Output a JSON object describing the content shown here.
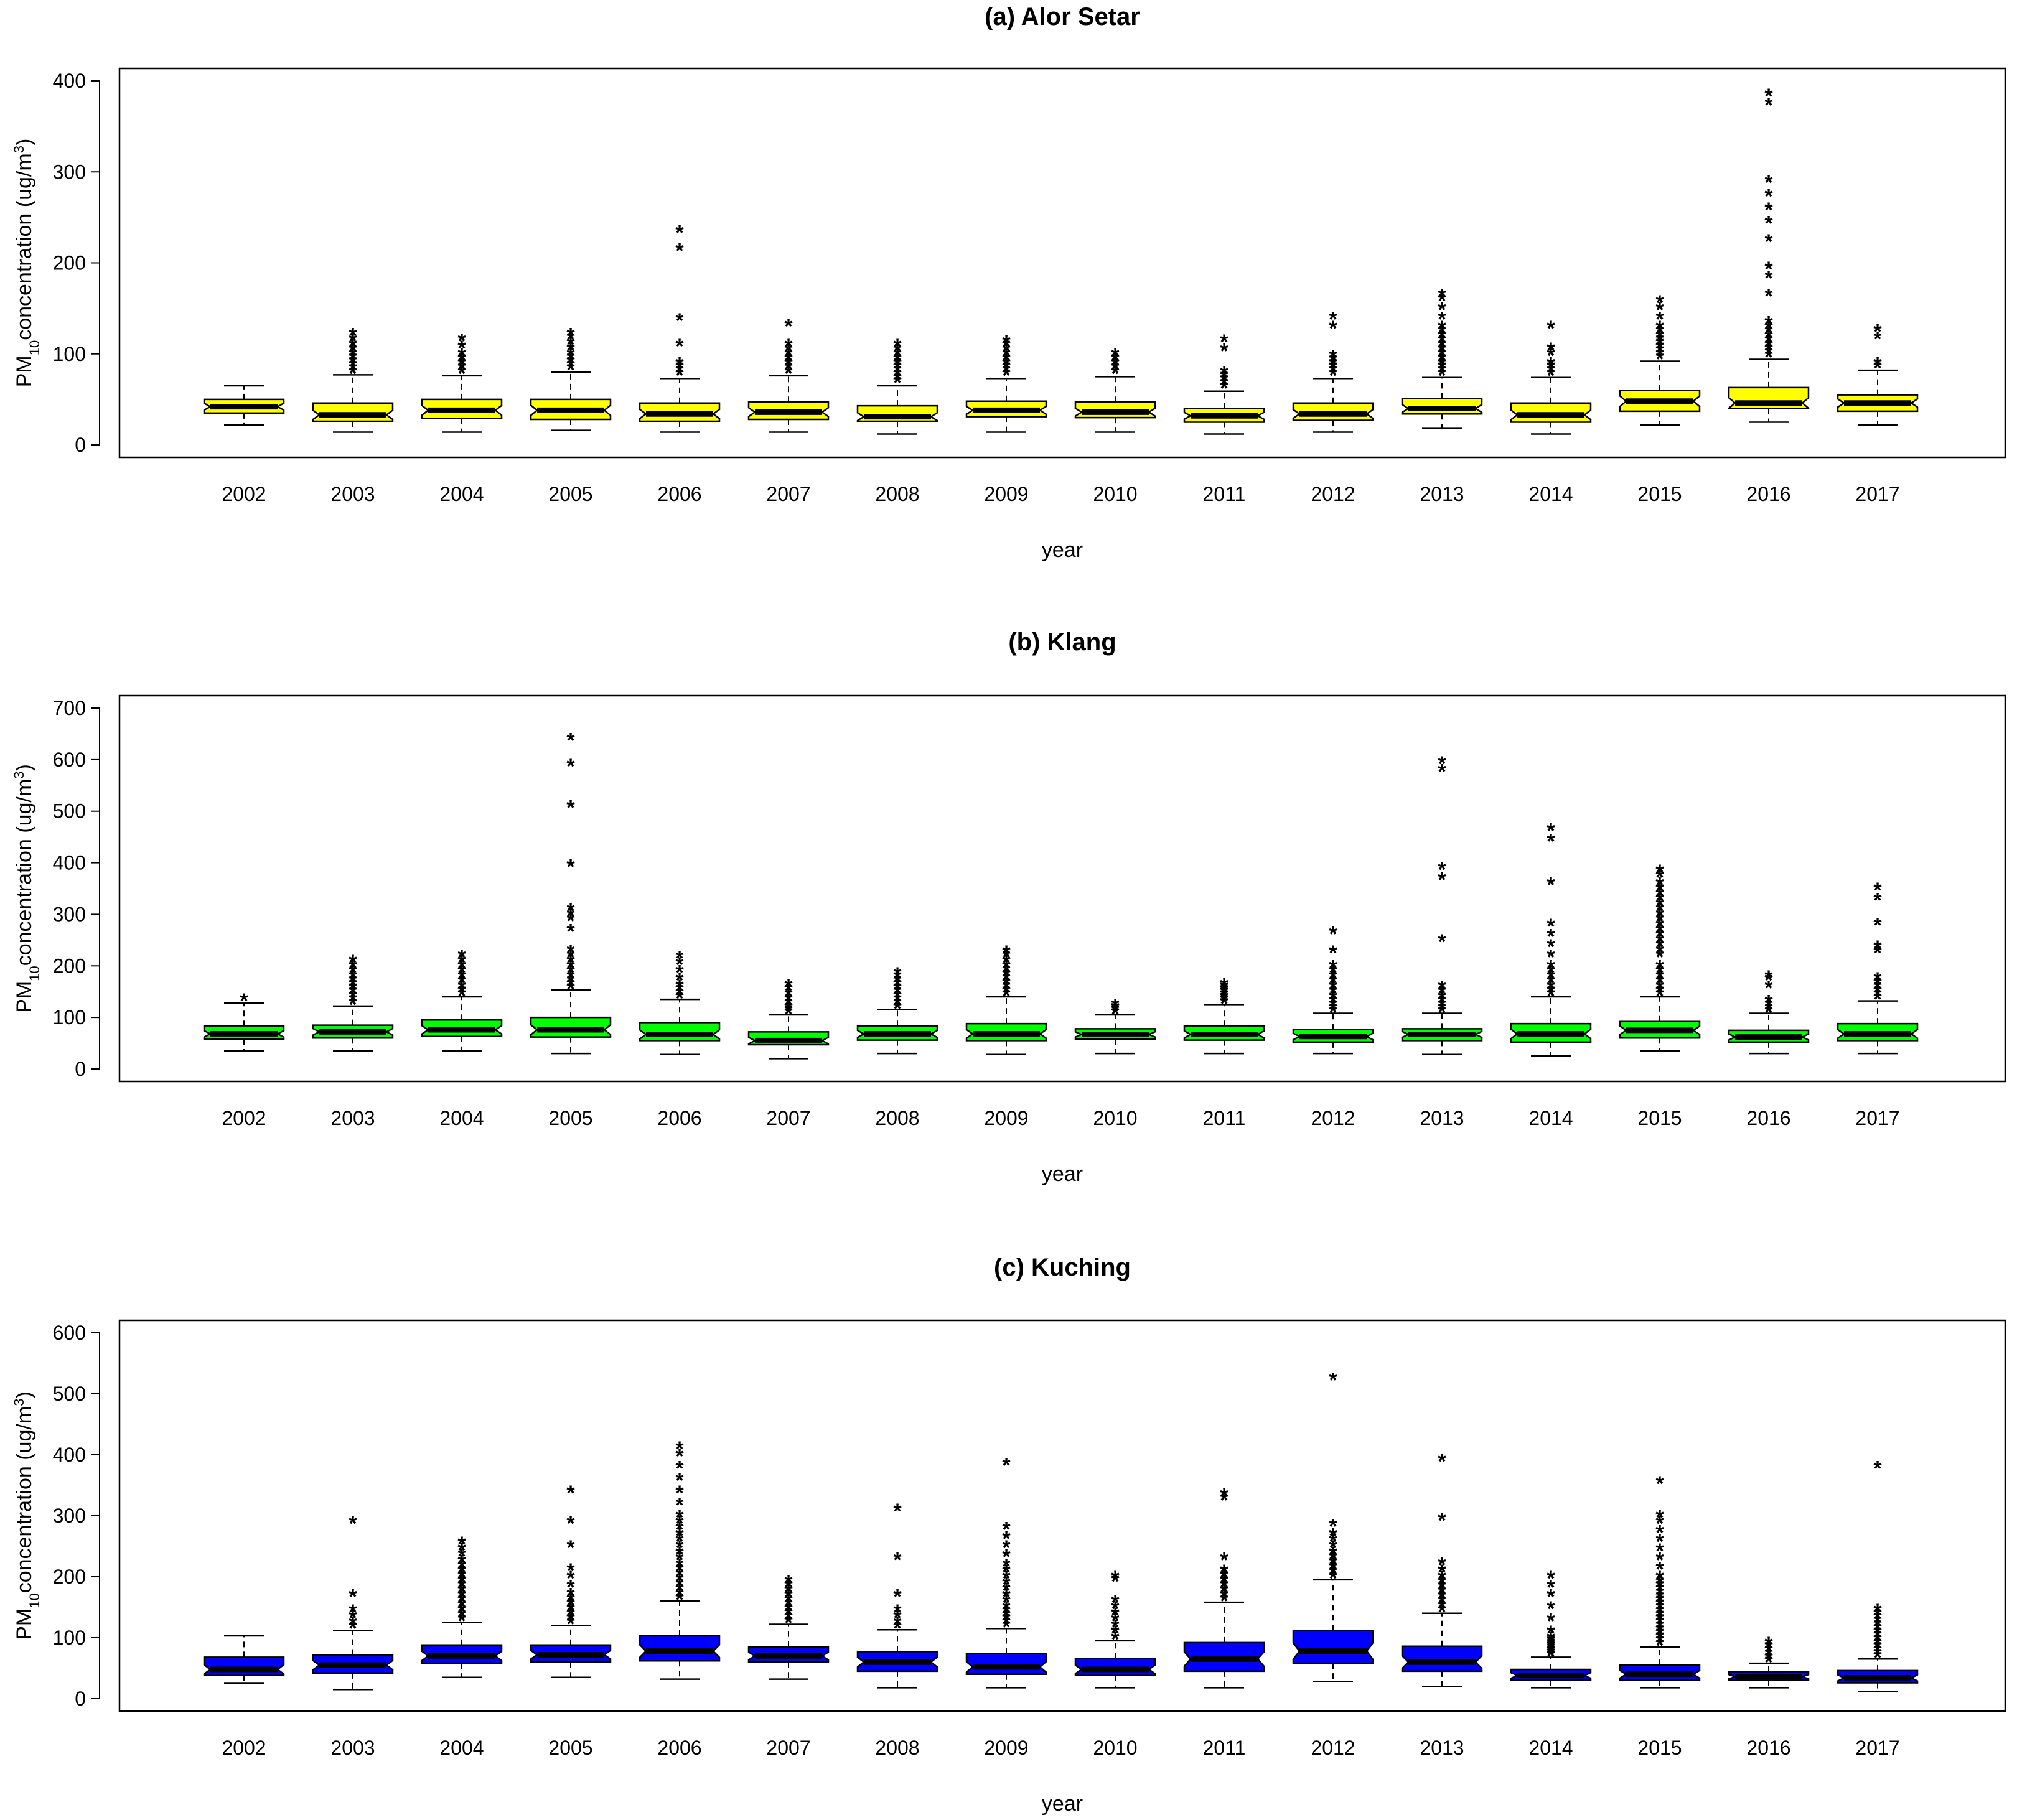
{
  "chart_data": [
    {
      "type": "boxplot",
      "title": "(a) Alor Setar",
      "ylabel": {
        "main": "PM",
        "sub": "10",
        "rest": "concentration (ug/m",
        "sup": "3",
        "close": ")"
      },
      "xlabel": "year",
      "ylim": [
        0,
        400
      ],
      "yticks": [
        0,
        100,
        200,
        300,
        400
      ],
      "fill": "#ffff00",
      "median_color": "#000000",
      "categories": [
        "2002",
        "2003",
        "2004",
        "2005",
        "2006",
        "2007",
        "2008",
        "2009",
        "2010",
        "2011",
        "2012",
        "2013",
        "2014",
        "2015",
        "2016",
        "2017"
      ],
      "boxes": [
        {
          "min": 22,
          "q1": 35,
          "median": 42,
          "q3": 50,
          "max": 65,
          "outliers": []
        },
        {
          "min": 14,
          "q1": 26,
          "median": 33,
          "q3": 46,
          "max": 77,
          "outliers": [
            80,
            84,
            88,
            92,
            96,
            100,
            105,
            110,
            116,
            122
          ]
        },
        {
          "min": 14,
          "q1": 29,
          "median": 38,
          "q3": 50,
          "max": 76,
          "outliers": [
            80,
            85,
            90,
            95,
            100,
            108,
            116
          ]
        },
        {
          "min": 16,
          "q1": 28,
          "median": 38,
          "q3": 50,
          "max": 80,
          "outliers": [
            84,
            88,
            92,
            96,
            100,
            106,
            112,
            118,
            122
          ]
        },
        {
          "min": 14,
          "q1": 26,
          "median": 34,
          "q3": 46,
          "max": 73,
          "outliers": [
            78,
            82,
            86,
            90,
            110,
            138,
            215,
            235
          ]
        },
        {
          "min": 14,
          "q1": 28,
          "median": 36,
          "q3": 47,
          "max": 76,
          "outliers": [
            80,
            85,
            90,
            95,
            100,
            105,
            110,
            132
          ]
        },
        {
          "min": 12,
          "q1": 26,
          "median": 31,
          "q3": 43,
          "max": 65,
          "outliers": [
            70,
            74,
            78,
            82,
            86,
            90,
            95,
            100,
            105,
            110
          ]
        },
        {
          "min": 14,
          "q1": 31,
          "median": 38,
          "q3": 48,
          "max": 73,
          "outliers": [
            78,
            82,
            86,
            90,
            95,
            100,
            105,
            110,
            114
          ]
        },
        {
          "min": 14,
          "q1": 30,
          "median": 36,
          "q3": 47,
          "max": 75,
          "outliers": [
            80,
            85,
            90,
            95,
            100
          ]
        },
        {
          "min": 12,
          "q1": 25,
          "median": 32,
          "q3": 40,
          "max": 59,
          "outliers": [
            64,
            68,
            72,
            76,
            80,
            105,
            115
          ]
        },
        {
          "min": 14,
          "q1": 27,
          "median": 34,
          "q3": 46,
          "max": 73,
          "outliers": [
            78,
            82,
            86,
            90,
            94,
            98,
            130,
            140
          ]
        },
        {
          "min": 18,
          "q1": 34,
          "median": 40,
          "q3": 51,
          "max": 74,
          "outliers": [
            78,
            82,
            86,
            90,
            95,
            100,
            105,
            110,
            115,
            120,
            125,
            130,
            140,
            150,
            160,
            165
          ]
        },
        {
          "min": 12,
          "q1": 25,
          "median": 33,
          "q3": 46,
          "max": 74,
          "outliers": [
            78,
            82,
            86,
            90,
            100,
            106,
            130
          ]
        },
        {
          "min": 22,
          "q1": 37,
          "median": 48,
          "q3": 60,
          "max": 92,
          "outliers": [
            96,
            100,
            104,
            108,
            112,
            116,
            120,
            125,
            130,
            140,
            150,
            158
          ]
        },
        {
          "min": 25,
          "q1": 40,
          "median": 46,
          "q3": 63,
          "max": 94,
          "outliers": [
            98,
            102,
            106,
            110,
            115,
            120,
            125,
            130,
            135,
            165,
            185,
            195,
            225,
            245,
            260,
            275,
            290,
            375,
            385
          ]
        },
        {
          "min": 22,
          "q1": 37,
          "median": 46,
          "q3": 55,
          "max": 82,
          "outliers": [
            86,
            90,
            118,
            126
          ]
        }
      ]
    },
    {
      "type": "boxplot",
      "title": "(b) Klang",
      "ylabel": {
        "main": "PM",
        "sub": "10",
        "rest": "concentration (ug/m",
        "sup": "3",
        "close": ")"
      },
      "xlabel": "year",
      "ylim": [
        0,
        700
      ],
      "yticks": [
        0,
        100,
        200,
        300,
        400,
        500,
        600,
        700
      ],
      "fill": "#00ff00",
      "median_color": "#000000",
      "categories": [
        "2002",
        "2003",
        "2004",
        "2005",
        "2006",
        "2007",
        "2008",
        "2009",
        "2010",
        "2011",
        "2012",
        "2013",
        "2014",
        "2015",
        "2016",
        "2017"
      ],
      "boxes": [
        {
          "min": 35,
          "q1": 58,
          "median": 68,
          "q3": 83,
          "max": 128,
          "outliers": [
            135
          ]
        },
        {
          "min": 35,
          "q1": 60,
          "median": 72,
          "q3": 85,
          "max": 122,
          "outliers": [
            128,
            135,
            142,
            150,
            158,
            165,
            172,
            180,
            190,
            200,
            210
          ]
        },
        {
          "min": 35,
          "q1": 63,
          "median": 76,
          "q3": 95,
          "max": 140,
          "outliers": [
            145,
            152,
            160,
            170,
            180,
            190,
            200,
            210,
            220
          ]
        },
        {
          "min": 30,
          "q1": 62,
          "median": 76,
          "q3": 100,
          "max": 153,
          "outliers": [
            158,
            165,
            172,
            180,
            190,
            200,
            210,
            220,
            230,
            270,
            290,
            300,
            310,
            395,
            510,
            590,
            640
          ]
        },
        {
          "min": 28,
          "q1": 55,
          "median": 67,
          "q3": 90,
          "max": 135,
          "outliers": [
            140,
            148,
            155,
            162,
            175,
            190,
            205,
            218
          ]
        },
        {
          "min": 20,
          "q1": 47,
          "median": 55,
          "q3": 72,
          "max": 105,
          "outliers": [
            110,
            115,
            120,
            128,
            135,
            145,
            155,
            163
          ]
        },
        {
          "min": 30,
          "q1": 56,
          "median": 68,
          "q3": 83,
          "max": 115,
          "outliers": [
            120,
            128,
            135,
            142,
            150,
            158,
            165,
            172,
            180,
            186
          ]
        },
        {
          "min": 28,
          "q1": 55,
          "median": 68,
          "q3": 88,
          "max": 140,
          "outliers": [
            145,
            152,
            160,
            168,
            176,
            184,
            192,
            200,
            210,
            220,
            228
          ]
        },
        {
          "min": 30,
          "q1": 58,
          "median": 67,
          "q3": 78,
          "max": 105,
          "outliers": [
            110,
            115,
            120,
            125
          ]
        },
        {
          "min": 30,
          "q1": 56,
          "median": 67,
          "q3": 83,
          "max": 125,
          "outliers": [
            130,
            135,
            140,
            145,
            150,
            155,
            160,
            165
          ]
        },
        {
          "min": 30,
          "q1": 52,
          "median": 63,
          "q3": 77,
          "max": 108,
          "outliers": [
            112,
            118,
            125,
            132,
            140,
            150,
            160,
            170,
            180,
            190,
            200,
            228,
            265
          ]
        },
        {
          "min": 28,
          "q1": 55,
          "median": 67,
          "q3": 78,
          "max": 108,
          "outliers": [
            112,
            118,
            125,
            132,
            140,
            150,
            160,
            250,
            370,
            390,
            580,
            595
          ]
        },
        {
          "min": 25,
          "q1": 52,
          "median": 68,
          "q3": 88,
          "max": 140,
          "outliers": [
            145,
            152,
            160,
            170,
            180,
            190,
            200,
            220,
            240,
            260,
            280,
            360,
            445,
            465
          ]
        },
        {
          "min": 35,
          "q1": 60,
          "median": 75,
          "q3": 92,
          "max": 140,
          "outliers": [
            145,
            152,
            160,
            170,
            180,
            190,
            200,
            220,
            230,
            240,
            250,
            260,
            270,
            280,
            290,
            300,
            310,
            320,
            330,
            340,
            350,
            360,
            375,
            385
          ]
        },
        {
          "min": 30,
          "q1": 52,
          "median": 62,
          "q3": 75,
          "max": 108,
          "outliers": [
            112,
            118,
            125,
            132,
            160,
            175,
            180
          ]
        },
        {
          "min": 30,
          "q1": 55,
          "median": 68,
          "q3": 88,
          "max": 132,
          "outliers": [
            138,
            145,
            152,
            160,
            168,
            176,
            228,
            238,
            282,
            330,
            350
          ]
        }
      ]
    },
    {
      "type": "boxplot",
      "title": "(c) Kuching",
      "ylabel": {
        "main": "PM",
        "sub": "10",
        "rest": "concentration (ug/m",
        "sup": "3",
        "close": ")"
      },
      "xlabel": "year",
      "ylim": [
        0,
        600
      ],
      "yticks": [
        0,
        100,
        200,
        300,
        400,
        500,
        600
      ],
      "fill": "#0000ff",
      "median_color": "#000000",
      "categories": [
        "2002",
        "2003",
        "2004",
        "2005",
        "2006",
        "2007",
        "2008",
        "2009",
        "2010",
        "2011",
        "2012",
        "2013",
        "2014",
        "2015",
        "2016",
        "2017"
      ],
      "boxes": [
        {
          "min": 25,
          "q1": 38,
          "median": 48,
          "q3": 68,
          "max": 103,
          "outliers": []
        },
        {
          "min": 15,
          "q1": 42,
          "median": 55,
          "q3": 72,
          "max": 112,
          "outliers": [
            118,
            125,
            135,
            145,
            170,
            290
          ]
        },
        {
          "min": 35,
          "q1": 58,
          "median": 70,
          "q3": 88,
          "max": 125,
          "outliers": [
            130,
            138,
            146,
            154,
            162,
            170,
            178,
            186,
            194,
            202,
            210,
            218,
            226,
            236,
            246,
            256
          ]
        },
        {
          "min": 35,
          "q1": 60,
          "median": 72,
          "q3": 88,
          "max": 120,
          "outliers": [
            125,
            132,
            140,
            148,
            156,
            164,
            172,
            185,
            200,
            212,
            250,
            290,
            340
          ]
        },
        {
          "min": 32,
          "q1": 62,
          "median": 78,
          "q3": 103,
          "max": 160,
          "outliers": [
            165,
            172,
            180,
            188,
            196,
            204,
            212,
            220,
            230,
            240,
            250,
            260,
            270,
            280,
            290,
            300,
            320,
            340,
            360,
            380,
            400,
            412
          ]
        },
        {
          "min": 32,
          "q1": 60,
          "median": 70,
          "q3": 85,
          "max": 122,
          "outliers": [
            127,
            134,
            141,
            148,
            155,
            162,
            170,
            178,
            186,
            193
          ]
        },
        {
          "min": 18,
          "q1": 45,
          "median": 60,
          "q3": 77,
          "max": 113,
          "outliers": [
            118,
            125,
            135,
            145,
            170,
            230,
            310
          ]
        },
        {
          "min": 18,
          "q1": 40,
          "median": 52,
          "q3": 74,
          "max": 115,
          "outliers": [
            120,
            126,
            132,
            138,
            144,
            150,
            160,
            170,
            180,
            190,
            200,
            210,
            220,
            235,
            250,
            265,
            280,
            385
          ]
        },
        {
          "min": 18,
          "q1": 38,
          "median": 48,
          "q3": 66,
          "max": 95,
          "outliers": [
            100,
            110,
            120,
            130,
            140,
            150,
            160,
            195,
            200
          ]
        },
        {
          "min": 18,
          "q1": 45,
          "median": 65,
          "q3": 92,
          "max": 158,
          "outliers": [
            163,
            170,
            178,
            186,
            194,
            202,
            210,
            230,
            328,
            335
          ]
        },
        {
          "min": 28,
          "q1": 58,
          "median": 78,
          "q3": 112,
          "max": 195,
          "outliers": [
            200,
            208,
            216,
            224,
            232,
            240,
            250,
            260,
            270,
            285,
            525
          ]
        },
        {
          "min": 20,
          "q1": 45,
          "median": 60,
          "q3": 86,
          "max": 140,
          "outliers": [
            145,
            152,
            160,
            168,
            176,
            184,
            192,
            200,
            210,
            222,
            295,
            392
          ]
        },
        {
          "min": 18,
          "q1": 30,
          "median": 38,
          "q3": 48,
          "max": 68,
          "outliers": [
            72,
            76,
            80,
            84,
            88,
            92,
            96,
            100,
            110,
            130,
            150,
            170,
            185,
            200
          ]
        },
        {
          "min": 18,
          "q1": 30,
          "median": 40,
          "q3": 55,
          "max": 85,
          "outliers": [
            90,
            96,
            102,
            108,
            114,
            120,
            126,
            132,
            138,
            144,
            150,
            156,
            162,
            168,
            174,
            180,
            186,
            192,
            200,
            215,
            230,
            245,
            260,
            275,
            290,
            300,
            355
          ]
        },
        {
          "min": 18,
          "q1": 30,
          "median": 36,
          "q3": 44,
          "max": 58,
          "outliers": [
            62,
            68,
            74,
            80,
            86,
            92
          ]
        },
        {
          "min": 12,
          "q1": 26,
          "median": 34,
          "q3": 46,
          "max": 65,
          "outliers": [
            70,
            75,
            80,
            86,
            92,
            98,
            104,
            110,
            116,
            122,
            128,
            134,
            140,
            146,
            380
          ]
        }
      ]
    }
  ]
}
